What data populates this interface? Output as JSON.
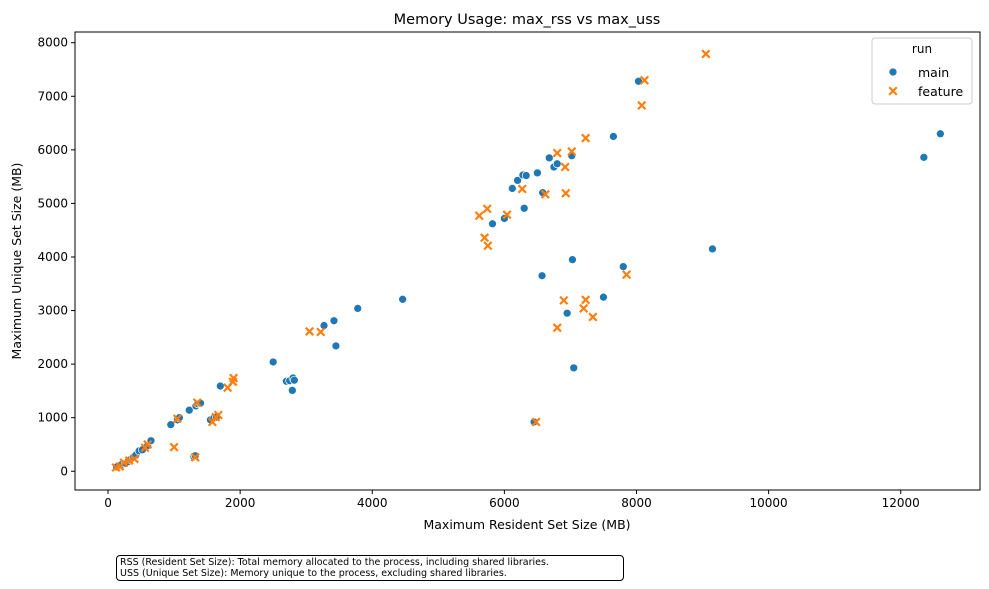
{
  "chart_data": {
    "type": "scatter",
    "title": "Memory Usage: max_rss vs max_uss",
    "xlabel": "Maximum Resident Set Size (MB)",
    "ylabel": "Maximum Unique Set Size (MB)",
    "xlim": [
      -500,
      13200
    ],
    "ylim": [
      -350,
      8200
    ],
    "xticks": [
      0,
      2000,
      4000,
      6000,
      8000,
      10000,
      12000
    ],
    "yticks": [
      0,
      1000,
      2000,
      3000,
      4000,
      5000,
      6000,
      7000,
      8000
    ],
    "grid": false,
    "legend": {
      "title": "run",
      "position": "top-right"
    },
    "series": [
      {
        "name": "main",
        "marker": "circle",
        "color": "#1f77b4",
        "points": [
          [
            130,
            80
          ],
          [
            200,
            120
          ],
          [
            260,
            150
          ],
          [
            300,
            180
          ],
          [
            340,
            220
          ],
          [
            380,
            260
          ],
          [
            420,
            300
          ],
          [
            470,
            380
          ],
          [
            520,
            400
          ],
          [
            600,
            480
          ],
          [
            650,
            570
          ],
          [
            950,
            870
          ],
          [
            1050,
            960
          ],
          [
            1080,
            1000
          ],
          [
            1230,
            1140
          ],
          [
            1330,
            1220
          ],
          [
            1360,
            1260
          ],
          [
            1400,
            1270
          ],
          [
            1300,
            270
          ],
          [
            1320,
            290
          ],
          [
            1550,
            960
          ],
          [
            1600,
            990
          ],
          [
            1640,
            1010
          ],
          [
            1700,
            1590
          ],
          [
            2500,
            2040
          ],
          [
            2700,
            1680
          ],
          [
            2750,
            1690
          ],
          [
            2800,
            1740
          ],
          [
            2820,
            1700
          ],
          [
            2790,
            1510
          ],
          [
            3270,
            2720
          ],
          [
            3420,
            2810
          ],
          [
            3450,
            2340
          ],
          [
            3780,
            3040
          ],
          [
            4460,
            3210
          ],
          [
            5820,
            4620
          ],
          [
            6000,
            4720
          ],
          [
            6120,
            5280
          ],
          [
            6200,
            5430
          ],
          [
            6280,
            5530
          ],
          [
            6330,
            5520
          ],
          [
            6300,
            4910
          ],
          [
            6500,
            5570
          ],
          [
            6580,
            5200
          ],
          [
            6680,
            5850
          ],
          [
            6750,
            5680
          ],
          [
            6800,
            5740
          ],
          [
            7020,
            5890
          ],
          [
            7650,
            6250
          ],
          [
            8030,
            7280
          ],
          [
            6570,
            3650
          ],
          [
            6950,
            2950
          ],
          [
            7030,
            3950
          ],
          [
            7050,
            1930
          ],
          [
            7500,
            3250
          ],
          [
            7800,
            3820
          ],
          [
            9150,
            4150
          ],
          [
            12350,
            5860
          ],
          [
            12600,
            6300
          ],
          [
            6450,
            920
          ]
        ]
      },
      {
        "name": "feature",
        "marker": "x",
        "color": "#ff7f0e",
        "points": [
          [
            120,
            70
          ],
          [
            180,
            90
          ],
          [
            240,
            160
          ],
          [
            320,
            200
          ],
          [
            400,
            230
          ],
          [
            560,
            440
          ],
          [
            600,
            500
          ],
          [
            1000,
            450
          ],
          [
            1050,
            980
          ],
          [
            1350,
            1280
          ],
          [
            1320,
            260
          ],
          [
            1580,
            920
          ],
          [
            1630,
            1010
          ],
          [
            1670,
            1050
          ],
          [
            1810,
            1560
          ],
          [
            1900,
            1740
          ],
          [
            1890,
            1670
          ],
          [
            3050,
            2610
          ],
          [
            3220,
            2600
          ],
          [
            5620,
            4770
          ],
          [
            5700,
            4360
          ],
          [
            5750,
            4210
          ],
          [
            5740,
            4900
          ],
          [
            6040,
            4790
          ],
          [
            6270,
            5270
          ],
          [
            6620,
            5170
          ],
          [
            6800,
            5940
          ],
          [
            6920,
            5680
          ],
          [
            6930,
            5190
          ],
          [
            7020,
            5970
          ],
          [
            7230,
            6220
          ],
          [
            8080,
            6830
          ],
          [
            8120,
            7300
          ],
          [
            9050,
            7790
          ],
          [
            6800,
            2680
          ],
          [
            6900,
            3190
          ],
          [
            7200,
            3040
          ],
          [
            7230,
            3200
          ],
          [
            7340,
            2880
          ],
          [
            7850,
            3670
          ],
          [
            6480,
            920
          ]
        ]
      }
    ]
  },
  "footnote": {
    "line1": "RSS (Resident Set Size): Total memory allocated to the process, including shared libraries.",
    "line2": "USS (Unique Set Size): Memory unique to the process, excluding shared libraries."
  }
}
